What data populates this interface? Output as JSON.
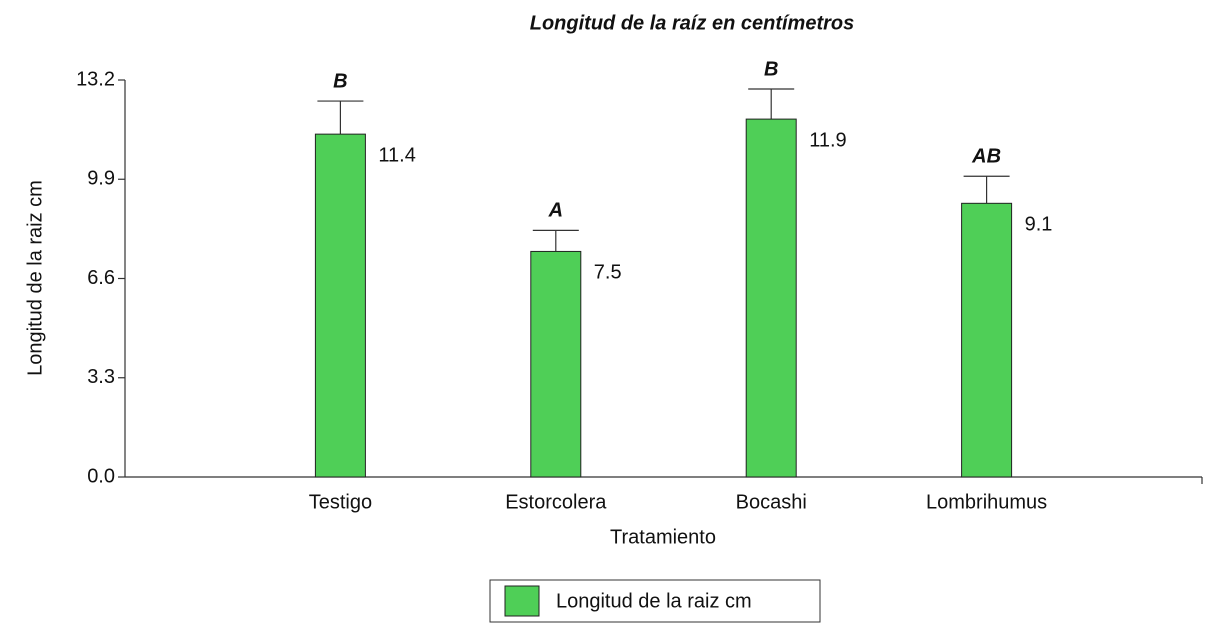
{
  "chart_data": {
    "type": "bar",
    "title": "Longitud de la raíz en centímetros",
    "xlabel": "Tratamiento",
    "ylabel": "Longitud de la raiz cm",
    "categories": [
      "Testigo",
      "Estorcolera",
      "Bocashi",
      "Lombrihumus"
    ],
    "series": [
      {
        "name": "Longitud de la raiz cm",
        "color": "#4fcf57",
        "values": [
          11.4,
          7.5,
          11.9,
          9.1
        ],
        "errors": [
          1.1,
          0.7,
          1.0,
          0.9
        ],
        "letters": [
          "B",
          "A",
          "B",
          "AB"
        ]
      }
    ],
    "ylim": [
      0,
      13.2
    ],
    "yticks": [
      {
        "value": 0,
        "label": "0.0"
      },
      3.3,
      6.6,
      9.9,
      13.2
    ],
    "grid": false,
    "legend": "bottom"
  }
}
